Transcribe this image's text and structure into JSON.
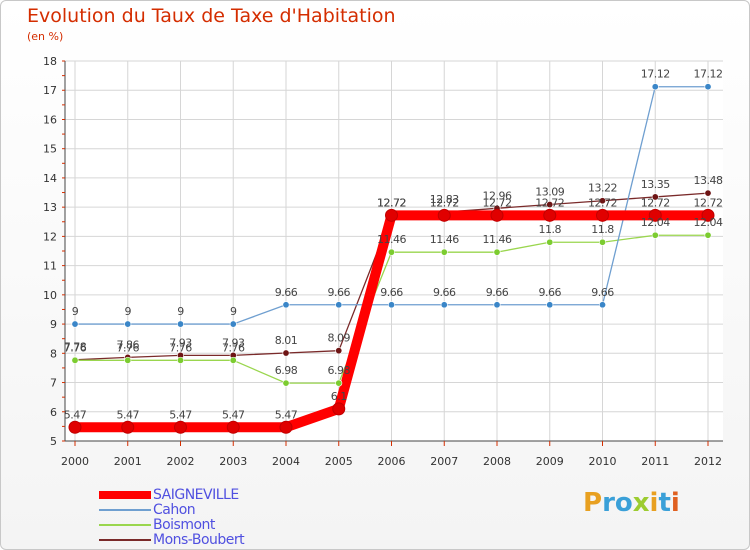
{
  "chart_data": {
    "type": "line",
    "title": "Evolution du Taux de Taxe d'Habitation",
    "subtitle": "(en %)",
    "x": [
      "2000",
      "2001",
      "2002",
      "2003",
      "2004",
      "2005",
      "2006",
      "2007",
      "2008",
      "2009",
      "2010",
      "2011",
      "2012"
    ],
    "ylim": [
      5,
      18
    ],
    "yticks": [
      5,
      6,
      7,
      8,
      9,
      10,
      11,
      12,
      13,
      14,
      15,
      16,
      17,
      18
    ],
    "grid": true,
    "legend_placement": "bottom-left",
    "series": [
      {
        "name": "SAIGNEVILLE",
        "color": "#ff0000",
        "marker_color": "#e00000",
        "values": [
          5.47,
          5.47,
          5.47,
          5.47,
          5.47,
          6.1,
          12.72,
          12.72,
          12.72,
          12.72,
          12.72,
          12.72,
          12.72
        ],
        "labels": [
          "5.47",
          "5.47",
          "5.47",
          "5.47",
          "5.47",
          "6.1",
          "12.72",
          "12.72",
          "12.72",
          "12.72",
          "12.72",
          "12.72",
          "12.72"
        ]
      },
      {
        "name": "Cahon",
        "color": "#6f9fd0",
        "marker_color": "#3a86c8",
        "values": [
          9,
          9,
          9,
          9,
          9.66,
          9.66,
          9.66,
          9.66,
          9.66,
          9.66,
          9.66,
          17.12,
          17.12
        ],
        "labels": [
          "9",
          "9",
          "9",
          "9",
          "9.66",
          "9.66",
          "9.66",
          "9.66",
          "9.66",
          "9.66",
          "9.66",
          "17.12",
          "17.12"
        ]
      },
      {
        "name": "Boismont",
        "color": "#9ad64e",
        "marker_color": "#7ccc30",
        "values": [
          7.76,
          7.76,
          7.76,
          7.76,
          6.98,
          6.98,
          11.46,
          11.46,
          11.46,
          11.8,
          11.8,
          12.04,
          12.04
        ],
        "labels": [
          "7.76",
          "7.76",
          "7.76",
          "7.76",
          "6.98",
          "6.98",
          "11.46",
          "11.46",
          "11.46",
          "11.8",
          "11.8",
          "12.04",
          "12.04"
        ]
      },
      {
        "name": "Mons-Boubert",
        "color": "#7a2a2a",
        "marker_color": "#6e1414",
        "values": [
          7.78,
          7.86,
          7.93,
          7.93,
          8.01,
          8.09,
          12.72,
          12.83,
          12.96,
          13.09,
          13.22,
          13.35,
          13.48
        ],
        "labels": [
          "7.78",
          "7.86",
          "7.93",
          "7.93",
          "8.01",
          "8.09",
          "12.72",
          "12.83",
          "12.96",
          "13.09",
          "13.22",
          "13.35",
          "13.48"
        ]
      }
    ]
  },
  "legend": {
    "items": [
      {
        "label": "SAIGNEVILLE",
        "color": "#ff0000"
      },
      {
        "label": "Cahon",
        "color": "#6f9fd0"
      },
      {
        "label": "Boismont",
        "color": "#9ad64e"
      },
      {
        "label": "Mons-Boubert",
        "color": "#7a2a2a"
      }
    ]
  },
  "logo": {
    "letters": [
      "P",
      "r",
      "o",
      "x",
      "i",
      "t",
      "i"
    ],
    "colors": [
      "#e8a020",
      "#3aa0d8",
      "#3aa0d8",
      "#9ccc30",
      "#e8a020",
      "#3aa0d8",
      "#e06020"
    ]
  }
}
